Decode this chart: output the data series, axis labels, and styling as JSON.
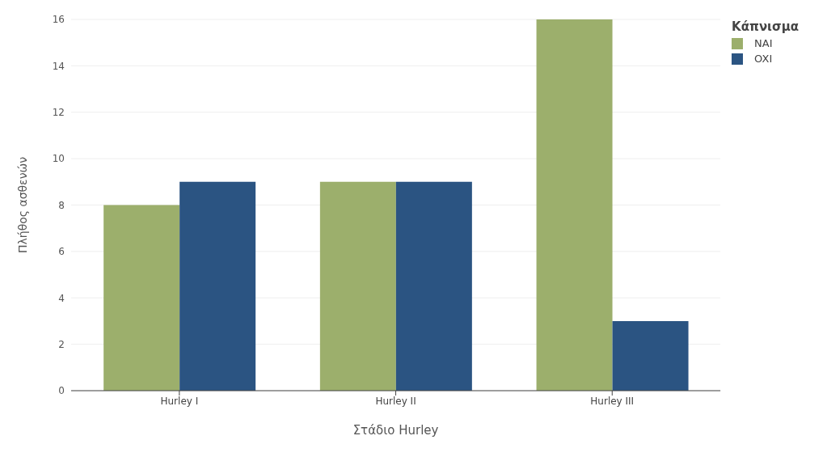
{
  "chart_data": {
    "type": "bar",
    "xlabel": "Στάδιο Hurley",
    "ylabel": "Πλήθος ασθενών",
    "legend_title": "Κάπνισμα",
    "categories": [
      "Hurley I",
      "Hurley II",
      "Hurley III"
    ],
    "series": [
      {
        "name": "NAI",
        "color": "#9caf6c",
        "values": [
          8,
          9,
          16
        ]
      },
      {
        "name": "OXI",
        "color": "#2b5482",
        "values": [
          9,
          9,
          3
        ]
      }
    ],
    "ylim": [
      0,
      16
    ],
    "yticks": [
      0,
      2,
      4,
      6,
      8,
      10,
      12,
      14,
      16
    ],
    "grid": "y",
    "legend": "top right"
  }
}
